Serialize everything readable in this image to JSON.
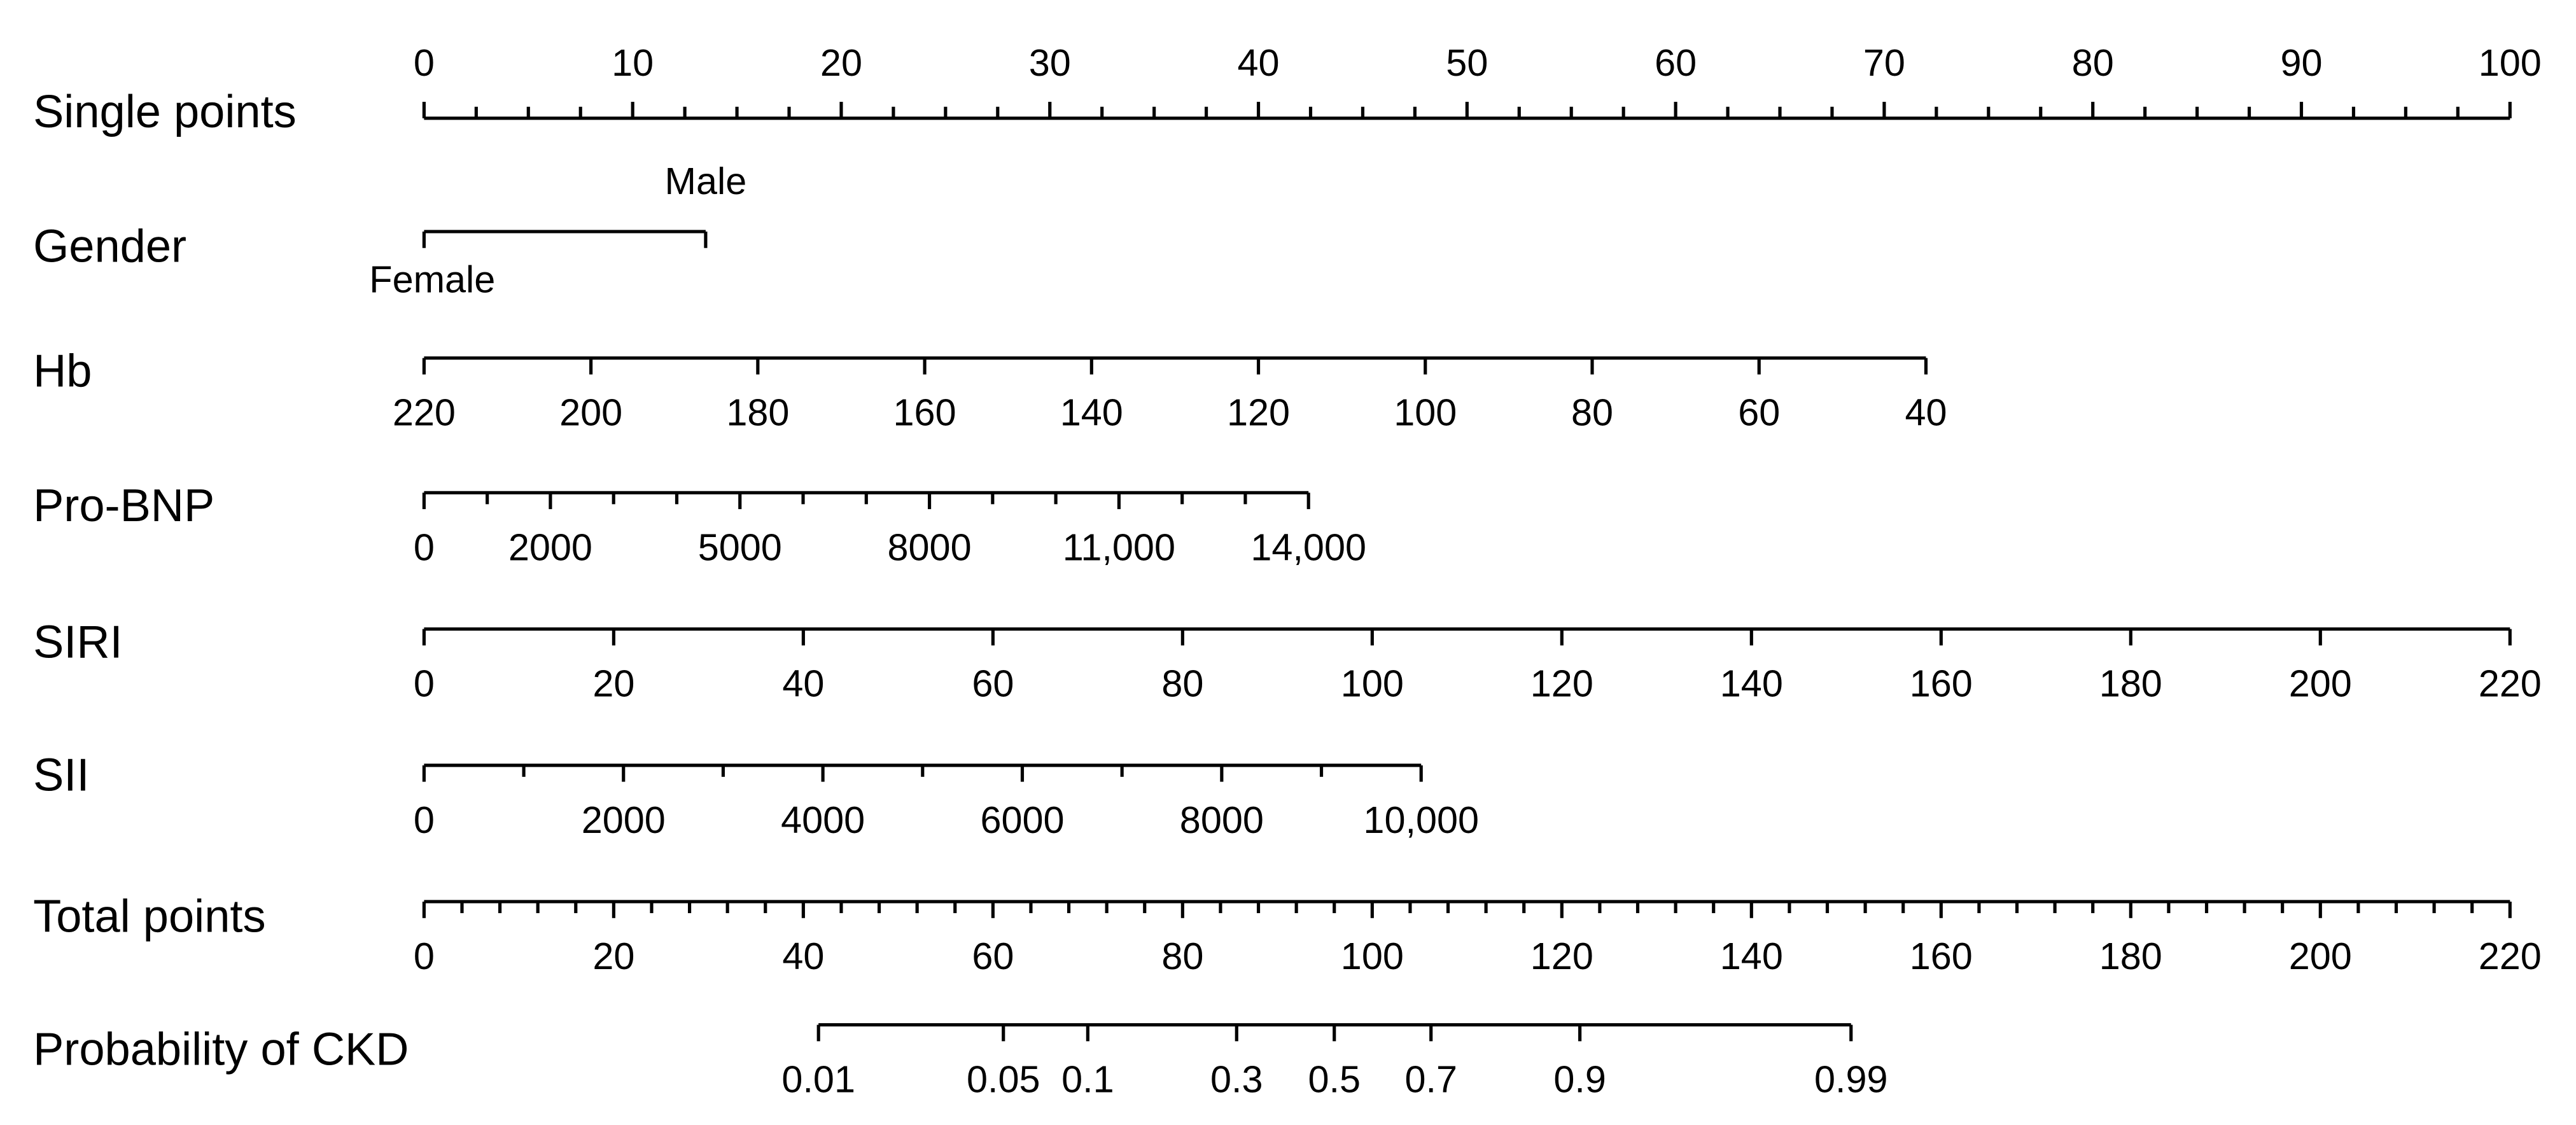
{
  "chart_data": {
    "type": "nomogram",
    "axes": [
      {
        "name": "Single points",
        "lim": [
          0,
          100
        ],
        "points_lim": [
          0,
          100
        ],
        "ticks": [
          0,
          10,
          20,
          30,
          40,
          50,
          60,
          70,
          80,
          90,
          100
        ],
        "minor_ticks": [
          2.5,
          5,
          7.5,
          12.5,
          15,
          17.5,
          22.5,
          25,
          27.5,
          32.5,
          35,
          37.5,
          42.5,
          45,
          47.5,
          52.5,
          55,
          57.5,
          62.5,
          65,
          67.5,
          72.5,
          75,
          77.5,
          82.5,
          85,
          87.5,
          92.5,
          95,
          97.5
        ],
        "label_side": "above"
      },
      {
        "name": "Gender",
        "categories": [
          "Female",
          "Male"
        ],
        "points": [
          0,
          13.5
        ]
      },
      {
        "name": "Hb",
        "lim": [
          220,
          40
        ],
        "points_lim": [
          0,
          72
        ],
        "ticks": [
          220,
          200,
          180,
          160,
          140,
          120,
          100,
          80,
          60,
          40
        ]
      },
      {
        "name": "Pro-BNP",
        "lim": [
          0,
          14000
        ],
        "points_lim": [
          0,
          42.4
        ],
        "ticks": [
          0,
          2000,
          5000,
          8000,
          {
            "value": 11000,
            "label": "11,000"
          },
          {
            "value": 14000,
            "label": "14,000"
          }
        ],
        "minor_ticks": [
          1000,
          3000,
          4000,
          6000,
          7000,
          9000,
          10000,
          12000,
          13000
        ]
      },
      {
        "name": "SIRI",
        "lim": [
          0,
          220
        ],
        "points_lim": [
          0,
          100
        ],
        "ticks": [
          0,
          20,
          40,
          60,
          80,
          100,
          120,
          140,
          160,
          180,
          200,
          220
        ]
      },
      {
        "name": "SII",
        "lim": [
          0,
          10000
        ],
        "points_lim": [
          0,
          47.8
        ],
        "ticks": [
          0,
          2000,
          4000,
          6000,
          8000,
          {
            "value": 10000,
            "label": "10,000"
          }
        ],
        "minor_ticks": [
          1000,
          3000,
          5000,
          7000,
          9000
        ]
      },
      {
        "name": "Total points",
        "lim": [
          0,
          220
        ],
        "points_lim": [
          0,
          100
        ],
        "ticks": [
          0,
          20,
          40,
          60,
          80,
          100,
          120,
          140,
          160,
          180,
          200,
          220
        ],
        "minor_ticks": [
          4,
          8,
          12,
          16,
          24,
          28,
          32,
          36,
          44,
          48,
          52,
          56,
          64,
          68,
          72,
          76,
          84,
          88,
          92,
          96,
          104,
          108,
          112,
          116,
          124,
          128,
          132,
          136,
          144,
          148,
          152,
          156,
          164,
          168,
          172,
          176,
          184,
          188,
          192,
          196,
          204,
          208,
          212,
          216
        ]
      },
      {
        "name": "Probability of CKD",
        "ticks": [
          0.01,
          0.05,
          0.1,
          0.3,
          0.5,
          0.7,
          0.9,
          0.99
        ],
        "total_points": [
          41.6,
          61.1,
          70,
          85.7,
          96,
          106.2,
          121.9,
          150.5
        ]
      }
    ]
  }
}
